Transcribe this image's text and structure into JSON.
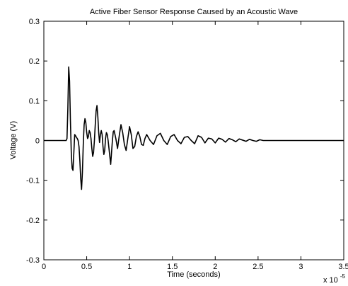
{
  "chart_data": {
    "type": "line",
    "title": "Active Fiber Sensor Response Caused by an Acoustic Wave",
    "xlabel": "Time (seconds)",
    "ylabel": "Voltage (V)",
    "x_multiplier_base": "x 10",
    "x_multiplier_exponent": "-5",
    "xlim": [
      0,
      3.5
    ],
    "ylim": [
      -0.3,
      0.3
    ],
    "x_ticks": [
      0,
      0.5,
      1,
      1.5,
      2,
      2.5,
      3,
      3.5
    ],
    "x_tick_labels": [
      "0",
      "0.5",
      "1",
      "1.5",
      "2",
      "2.5",
      "3",
      "3.5"
    ],
    "y_ticks": [
      -0.3,
      -0.2,
      -0.1,
      0,
      0.1,
      0.2,
      0.3
    ],
    "y_tick_labels": [
      "-0.3",
      "-0.2",
      "-0.1",
      "0",
      "0.1",
      "0.2",
      "0.3"
    ],
    "grid": false,
    "line_color": "#000000",
    "series": [
      {
        "x": [
          0,
          0.26,
          0.27,
          0.28,
          0.29,
          0.3,
          0.31,
          0.32,
          0.33,
          0.34,
          0.35,
          0.36,
          0.37,
          0.38,
          0.39,
          0.4,
          0.41,
          0.42,
          0.43,
          0.44,
          0.45,
          0.46,
          0.47,
          0.48,
          0.49,
          0.5,
          0.51,
          0.52,
          0.53,
          0.54,
          0.55,
          0.56,
          0.57,
          0.58,
          0.59,
          0.6,
          0.61,
          0.62,
          0.63,
          0.64,
          0.65,
          0.66,
          0.67,
          0.68,
          0.69,
          0.7,
          0.71,
          0.72,
          0.73,
          0.74,
          0.75,
          0.76,
          0.77,
          0.78,
          0.79,
          0.8,
          0.81,
          0.82,
          0.84,
          0.86,
          0.88,
          0.9,
          0.92,
          0.94,
          0.96,
          0.98,
          1.0,
          1.02,
          1.04,
          1.06,
          1.08,
          1.1,
          1.12,
          1.14,
          1.16,
          1.18,
          1.2,
          1.24,
          1.28,
          1.32,
          1.36,
          1.4,
          1.44,
          1.48,
          1.52,
          1.56,
          1.6,
          1.64,
          1.68,
          1.72,
          1.76,
          1.8,
          1.84,
          1.88,
          1.92,
          1.96,
          2.0,
          2.04,
          2.08,
          2.12,
          2.16,
          2.2,
          2.24,
          2.28,
          2.32,
          2.36,
          2.4,
          2.44,
          2.48,
          2.52,
          2.56,
          2.6,
          3.5
        ],
        "y": [
          0,
          0,
          0.005,
          0.08,
          0.185,
          0.15,
          0.05,
          -0.03,
          -0.07,
          -0.075,
          -0.03,
          0.015,
          0.012,
          0.008,
          0.005,
          0.0,
          -0.015,
          -0.05,
          -0.095,
          -0.123,
          -0.08,
          -0.01,
          0.04,
          0.055,
          0.045,
          0.02,
          0.005,
          0.01,
          0.025,
          0.02,
          0.005,
          -0.02,
          -0.04,
          -0.03,
          0.0,
          0.04,
          0.075,
          0.088,
          0.06,
          0.02,
          -0.005,
          0.015,
          0.025,
          0.015,
          -0.015,
          -0.035,
          -0.025,
          0.005,
          0.02,
          0.015,
          0.0,
          -0.02,
          -0.04,
          -0.06,
          -0.03,
          0.0,
          0.022,
          0.025,
          0.005,
          -0.02,
          0.012,
          0.04,
          0.02,
          -0.01,
          -0.025,
          0.005,
          0.035,
          0.015,
          -0.02,
          -0.015,
          0.01,
          0.022,
          0.01,
          -0.01,
          -0.012,
          0.005,
          0.015,
          0.0,
          -0.01,
          0.012,
          0.018,
          0.0,
          -0.01,
          0.01,
          0.015,
          0.0,
          -0.008,
          0.008,
          0.01,
          0.0,
          -0.008,
          0.012,
          0.008,
          -0.006,
          0.006,
          0.004,
          -0.006,
          0.006,
          0.003,
          -0.004,
          0.005,
          0.002,
          -0.003,
          0.004,
          0.001,
          -0.002,
          0.003,
          0.0,
          -0.002,
          0.002,
          0.0,
          0.0,
          0.0
        ]
      }
    ]
  }
}
